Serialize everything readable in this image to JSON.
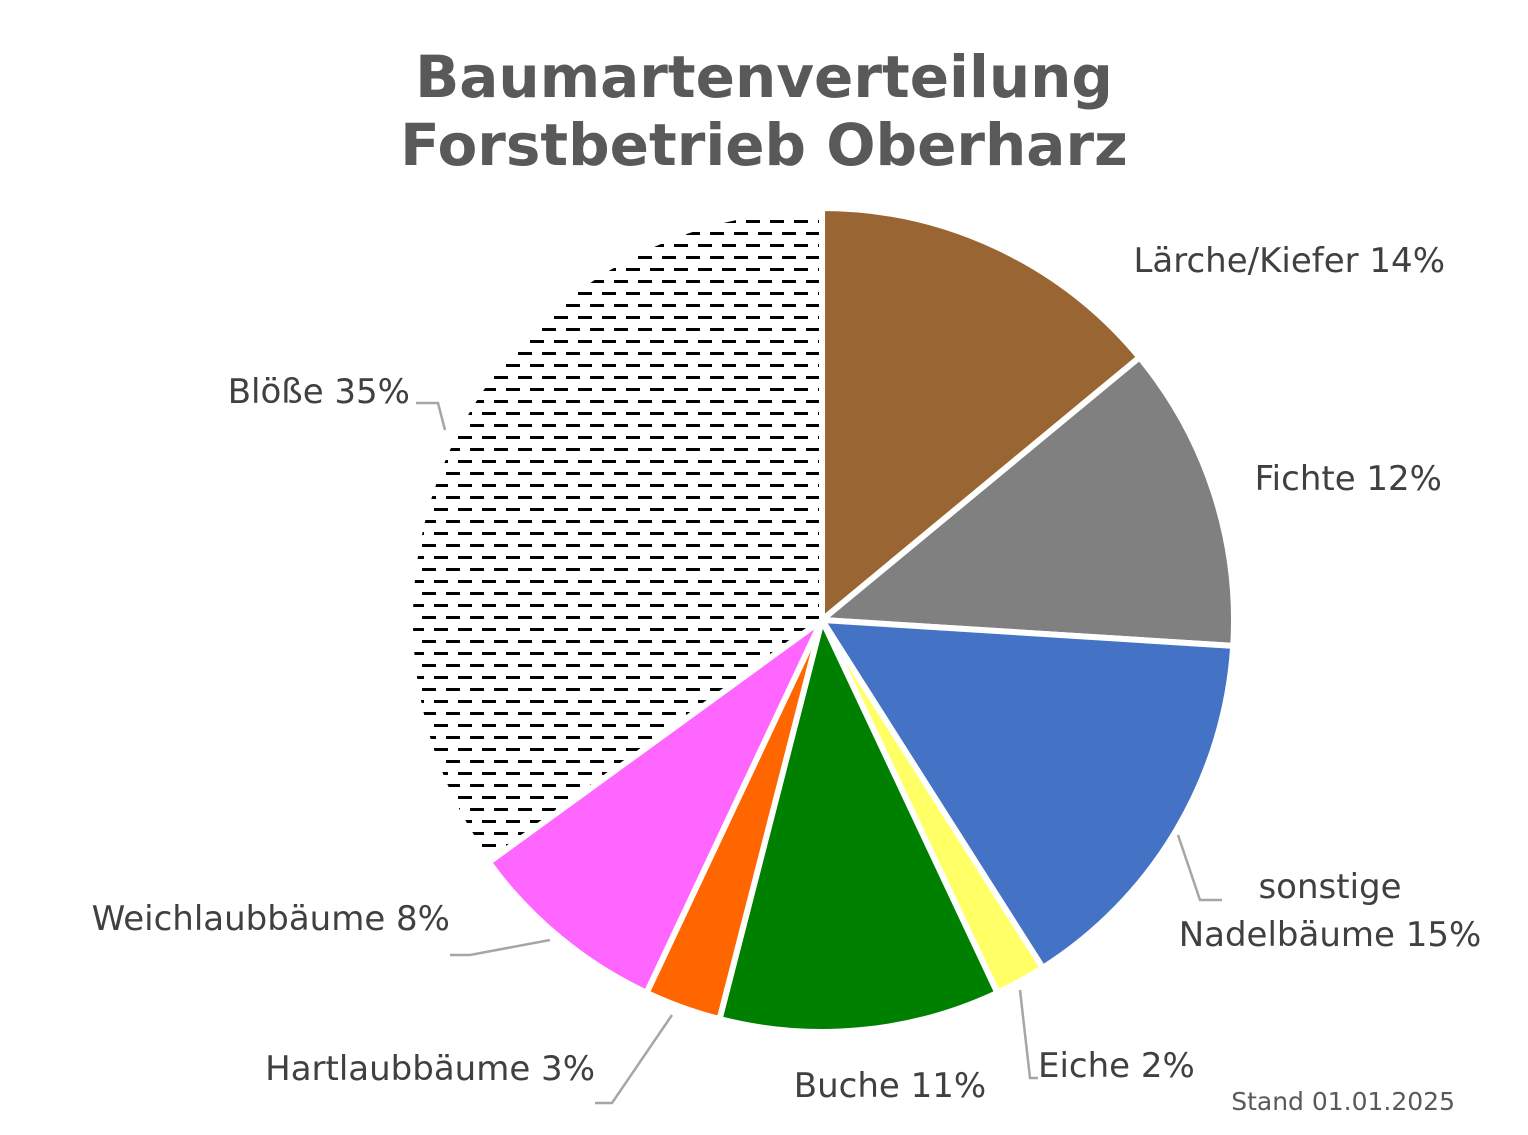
{
  "chart_data": {
    "type": "pie",
    "title_lines": [
      "Baumartenverteilung",
      "Forstbetrieb Oberharz"
    ],
    "slices": [
      {
        "name": "Lärche/Kiefer",
        "value": 14,
        "label_lines": [
          "Lärche/Kiefer 14%"
        ],
        "color": "#996633",
        "pattern": "none"
      },
      {
        "name": "Fichte",
        "value": 12,
        "label_lines": [
          "Fichte 12%"
        ],
        "color": "#808080",
        "pattern": "none"
      },
      {
        "name": "sonstige Nadelbäume",
        "value": 15,
        "label_lines": [
          "sonstige",
          "Nadelbäume 15%"
        ],
        "color": "#4472C4",
        "pattern": "none"
      },
      {
        "name": "Eiche",
        "value": 2,
        "label_lines": [
          "Eiche 2%"
        ],
        "color": "#FFFF66",
        "pattern": "none"
      },
      {
        "name": "Buche",
        "value": 11,
        "label_lines": [
          "Buche 11%"
        ],
        "color": "#008000",
        "pattern": "none"
      },
      {
        "name": "Hartlaubbäume",
        "value": 3,
        "label_lines": [
          "Hartlaubbäume 3%"
        ],
        "color": "#FF6600",
        "pattern": "none"
      },
      {
        "name": "Weichlaubbäume",
        "value": 8,
        "label_lines": [
          "Weichlaubbäume 8%"
        ],
        "color": "#FF66FF",
        "pattern": "none"
      },
      {
        "name": "Blöße",
        "value": 35,
        "label_lines": [
          "Blöße 35%"
        ],
        "color": "#000000",
        "pattern": "dashed-horizontal"
      }
    ],
    "start_angle_deg": 0,
    "direction": "clockwise",
    "legend": "none",
    "footnote": "Stand 01.01.2025"
  }
}
